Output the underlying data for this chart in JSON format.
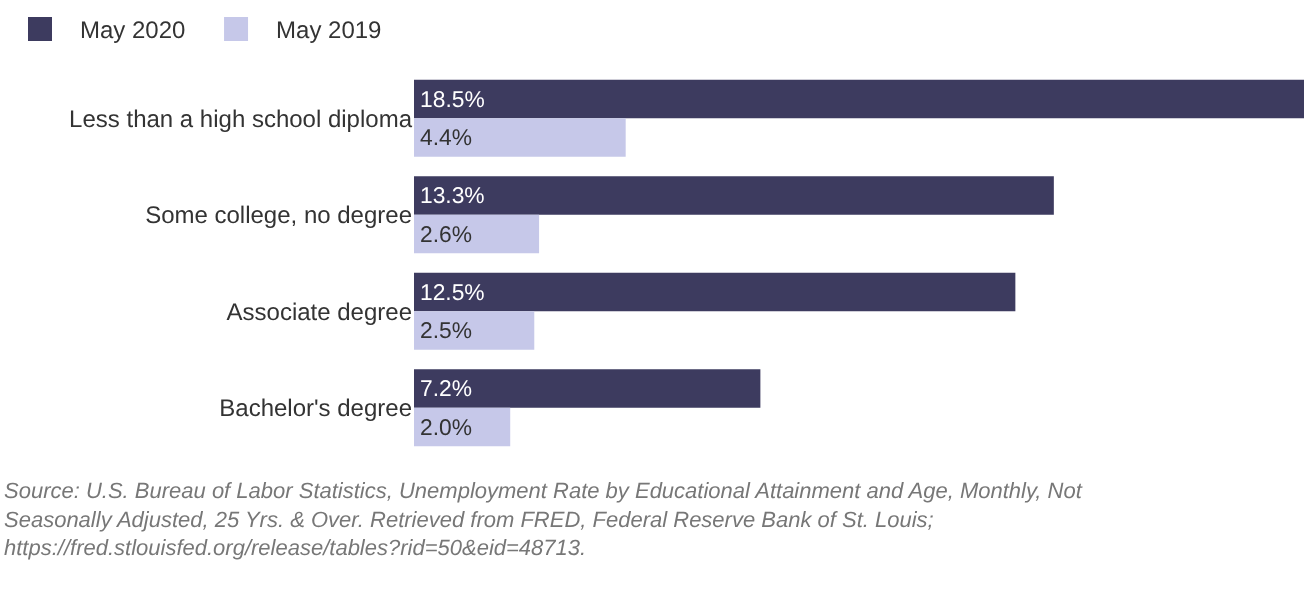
{
  "chart_data": {
    "type": "bar",
    "orientation": "horizontal",
    "categories": [
      "Less than a high school diploma",
      "Some college, no degree",
      "Associate degree",
      "Bachelor's degree"
    ],
    "series": [
      {
        "name": "May 2020",
        "color": "#3d3b5f",
        "values": [
          18.5,
          13.3,
          12.5,
          7.2
        ],
        "value_labels": [
          "18.5%",
          "13.3%",
          "12.5%",
          "7.2%"
        ]
      },
      {
        "name": "May 2019",
        "color": "#c6c8e9",
        "values": [
          4.4,
          2.6,
          2.5,
          2.0
        ],
        "value_labels": [
          "4.4%",
          "2.6%",
          "2.5%",
          "2.0%"
        ]
      }
    ],
    "xlim": [
      0,
      18.5
    ],
    "tick_labels": "y",
    "legend": "top left",
    "annotations": [
      "Source: U.S. Bureau of Labor Statistics, Unemployment Rate by Educational Attainment and Age, Monthly, Not Seasonally Adjusted, 25 Yrs. & Over. Retrieved from FRED, Federal Reserve Bank of St. Louis; https://fred.stlouisfed.org/release/tables?rid=50&eid=48713."
    ]
  }
}
